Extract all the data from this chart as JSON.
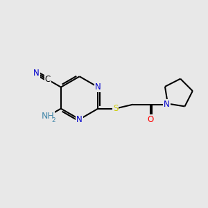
{
  "bg_color": "#e8e8e8",
  "bond_color": "#000000",
  "line_width": 1.5,
  "atom_colors": {
    "N": "#0000cc",
    "S": "#cccc00",
    "O": "#ff0000",
    "C": "#000000",
    "H": "#4488aa"
  },
  "font_size": 8.5,
  "figsize": [
    3.0,
    3.0
  ],
  "dpi": 100
}
